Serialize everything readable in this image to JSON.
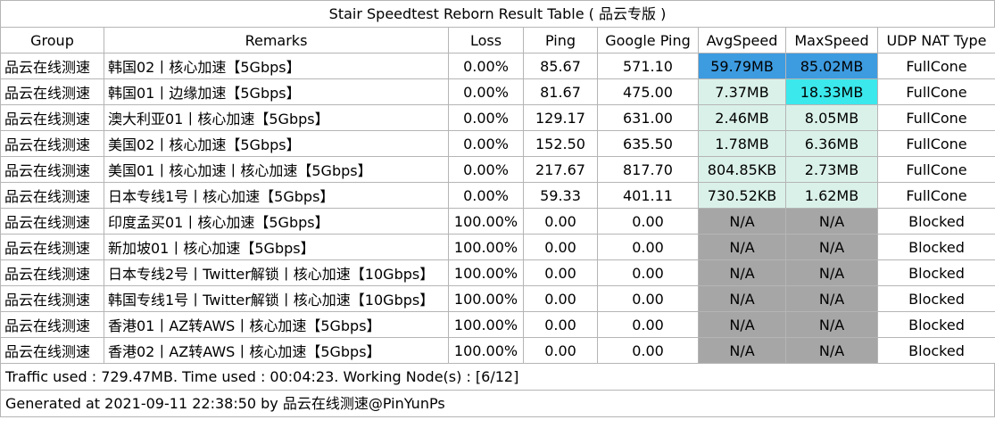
{
  "title": "Stair Speedtest Reborn Result Table ( 品云专版 )",
  "headers": [
    "Group",
    "Remarks",
    "Loss",
    "Ping",
    "Google Ping",
    "AvgSpeed",
    "MaxSpeed",
    "UDP NAT Type"
  ],
  "rows": [
    {
      "group": "品云在线测速",
      "remarks": "韩国02丨核心加速【5Gbps】",
      "loss": "0.00%",
      "ping": "85.67",
      "google_ping": "571.10",
      "avg": "59.79MB",
      "avg_color": "#3d9be0",
      "max": "85.02MB",
      "max_color": "#3d9be0",
      "nat": "FullCone"
    },
    {
      "group": "品云在线测速",
      "remarks": "韩国01丨边缘加速【5Gbps】",
      "loss": "0.00%",
      "ping": "81.67",
      "google_ping": "475.00",
      "avg": "7.37MB",
      "avg_color": "#daf1e9",
      "max": "18.33MB",
      "max_color": "#3be8ec",
      "nat": "FullCone"
    },
    {
      "group": "品云在线测速",
      "remarks": "澳大利亚01丨核心加速【5Gbps】",
      "loss": "0.00%",
      "ping": "129.17",
      "google_ping": "631.00",
      "avg": "2.46MB",
      "avg_color": "#daf1e9",
      "max": "8.05MB",
      "max_color": "#daf1e9",
      "nat": "FullCone"
    },
    {
      "group": "品云在线测速",
      "remarks": "美国02丨核心加速【5Gbps】",
      "loss": "0.00%",
      "ping": "152.50",
      "google_ping": "635.50",
      "avg": "1.78MB",
      "avg_color": "#daf1e9",
      "max": "6.36MB",
      "max_color": "#daf1e9",
      "nat": "FullCone"
    },
    {
      "group": "品云在线测速",
      "remarks": "美国01丨核心加速丨核心加速【5Gbps】",
      "loss": "0.00%",
      "ping": "217.67",
      "google_ping": "817.70",
      "avg": "804.85KB",
      "avg_color": "#daf1e9",
      "max": "2.73MB",
      "max_color": "#daf1e9",
      "nat": "FullCone"
    },
    {
      "group": "品云在线测速",
      "remarks": "日本专线1号丨核心加速【5Gbps】",
      "loss": "0.00%",
      "ping": "59.33",
      "google_ping": "401.11",
      "avg": "730.52KB",
      "avg_color": "#daf1e9",
      "max": "1.62MB",
      "max_color": "#daf1e9",
      "nat": "FullCone"
    },
    {
      "group": "品云在线测速",
      "remarks": "印度孟买01丨核心加速【5Gbps】",
      "loss": "100.00%",
      "ping": "0.00",
      "google_ping": "0.00",
      "avg": "N/A",
      "avg_color": "#a6a6a6",
      "max": "N/A",
      "max_color": "#a6a6a6",
      "nat": "Blocked"
    },
    {
      "group": "品云在线测速",
      "remarks": "新加坡01丨核心加速【5Gbps】",
      "loss": "100.00%",
      "ping": "0.00",
      "google_ping": "0.00",
      "avg": "N/A",
      "avg_color": "#a6a6a6",
      "max": "N/A",
      "max_color": "#a6a6a6",
      "nat": "Blocked"
    },
    {
      "group": "品云在线测速",
      "remarks": "日本专线2号丨Twitter解锁丨核心加速【10Gbps】",
      "loss": "100.00%",
      "ping": "0.00",
      "google_ping": "0.00",
      "avg": "N/A",
      "avg_color": "#a6a6a6",
      "max": "N/A",
      "max_color": "#a6a6a6",
      "nat": "Blocked"
    },
    {
      "group": "品云在线测速",
      "remarks": "韩国专线1号丨Twitter解锁丨核心加速【10Gbps】",
      "loss": "100.00%",
      "ping": "0.00",
      "google_ping": "0.00",
      "avg": "N/A",
      "avg_color": "#a6a6a6",
      "max": "N/A",
      "max_color": "#a6a6a6",
      "nat": "Blocked"
    },
    {
      "group": "品云在线测速",
      "remarks": "香港01丨AZ转AWS丨核心加速【5Gbps】",
      "loss": "100.00%",
      "ping": "0.00",
      "google_ping": "0.00",
      "avg": "N/A",
      "avg_color": "#a6a6a6",
      "max": "N/A",
      "max_color": "#a6a6a6",
      "nat": "Blocked"
    },
    {
      "group": "品云在线测速",
      "remarks": "香港02丨AZ转AWS丨核心加速【5Gbps】",
      "loss": "100.00%",
      "ping": "0.00",
      "google_ping": "0.00",
      "avg": "N/A",
      "avg_color": "#a6a6a6",
      "max": "N/A",
      "max_color": "#a6a6a6",
      "nat": "Blocked"
    }
  ],
  "traffic_line": "Traffic used : 729.47MB. Time used : 00:04:23. Working Node(s) : [6/12]",
  "generated_line": "Generated at 2021-09-11 22:38:50 by 品云在线测速@PinYunPs"
}
